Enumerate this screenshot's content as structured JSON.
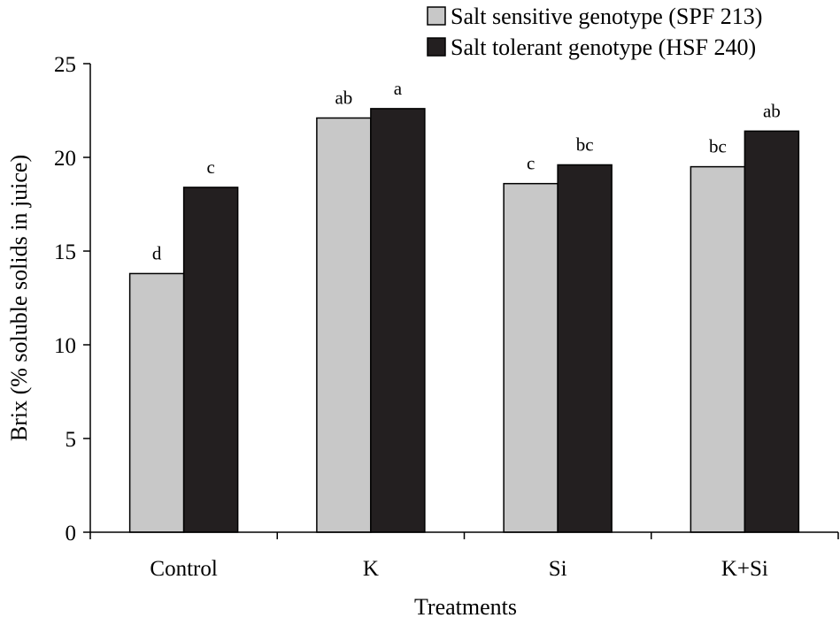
{
  "chart_data": {
    "type": "bar",
    "title": "",
    "xlabel": "Treatments",
    "ylabel": "Brix (% soluble solids in juice)",
    "ylim": [
      0,
      25
    ],
    "yticks": [
      0,
      5,
      10,
      15,
      20,
      25
    ],
    "grid": false,
    "legend_position": "top-right",
    "categories": [
      "Control",
      "K",
      "Si",
      "K+Si"
    ],
    "series": [
      {
        "name": "Salt sensitive genotype (SPF 213)",
        "color": "#c8c8c8",
        "values": [
          13.8,
          22.1,
          18.6,
          19.5
        ],
        "labels": [
          "d",
          "ab",
          "c",
          "bc"
        ]
      },
      {
        "name": "Salt tolerant genotype (HSF 240)",
        "color": "#231f20",
        "values": [
          18.4,
          22.6,
          19.6,
          21.4
        ],
        "labels": [
          "c",
          "a",
          "bc",
          "ab"
        ]
      }
    ]
  }
}
